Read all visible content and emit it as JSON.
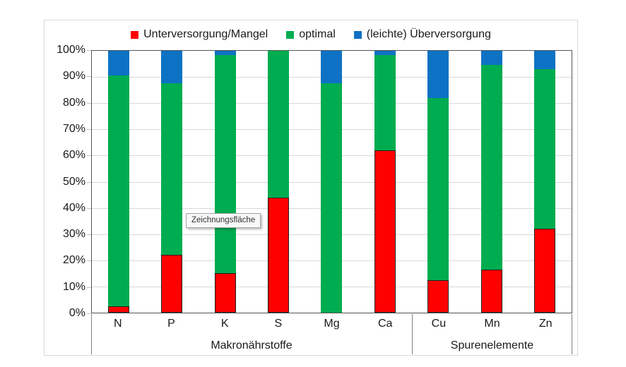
{
  "tooltip": {
    "text": "Zeichnungsfläche"
  },
  "chart_data": {
    "type": "bar",
    "stacked": "percent",
    "title": "",
    "categories": [
      "N",
      "P",
      "K",
      "S",
      "Mg",
      "Ca",
      "Cu",
      "Mn",
      "Zn"
    ],
    "category_groups": [
      {
        "label": "Makronährstoffe",
        "categories": [
          "N",
          "P",
          "K",
          "S",
          "Mg",
          "Ca"
        ],
        "span": 6
      },
      {
        "label": "Spurenelemente",
        "categories": [
          "Cu",
          "Mn",
          "Zn"
        ],
        "span": 3
      }
    ],
    "series": [
      {
        "name": "Unterversorgung/Mangel",
        "color": "#FF0000",
        "values": [
          2.5,
          22,
          15,
          44,
          0,
          62,
          12.5,
          16.5,
          32
        ]
      },
      {
        "name": "optimal",
        "color": "#00AC50",
        "values": [
          88,
          65.5,
          83.5,
          56,
          87.5,
          36.5,
          69.5,
          78,
          61
        ]
      },
      {
        "name": "(leichte) Überversorgung",
        "color": "#0E72C4",
        "values": [
          9.5,
          12.5,
          1.5,
          0,
          12.5,
          1.5,
          18,
          5.5,
          7
        ]
      }
    ],
    "ylim": [
      0,
      100
    ],
    "y_ticks": [
      0,
      10,
      20,
      30,
      40,
      50,
      60,
      70,
      80,
      90,
      100
    ],
    "y_tick_labels": [
      "0%",
      "10%",
      "20%",
      "30%",
      "40%",
      "50%",
      "60%",
      "70%",
      "80%",
      "90%",
      "100%"
    ],
    "grid": true,
    "legend_position": "top"
  }
}
